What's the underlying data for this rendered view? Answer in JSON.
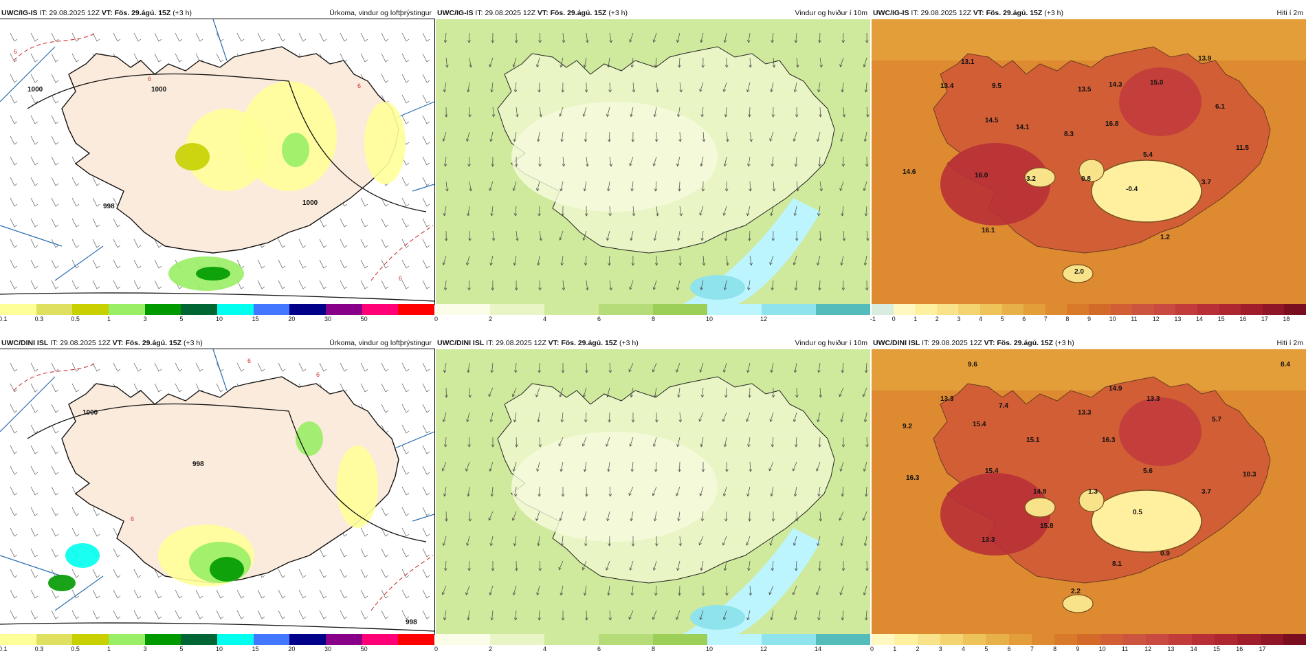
{
  "top_row": {
    "precip": {
      "model": "UWC/IG-IS",
      "it_label": "IT:",
      "it_value": "29.08.2025 12Z",
      "vt_label": "VT:",
      "vt_value": "Fös. 29.ágú. 15Z",
      "offset": "(+3 h)",
      "title": "Úrkoma, vindur og loftþrýstingur",
      "ticks": [
        "0.1",
        "0.3",
        "0.5",
        "1",
        "3",
        "5",
        "10",
        "15",
        "20",
        "30",
        "50"
      ],
      "colors": [
        "#ffff99",
        "#e0e060",
        "#c8d000",
        "#99ee66",
        "#009900",
        "#006633",
        "#00ffee",
        "#4477ff",
        "#000088",
        "#880088",
        "#ff0077",
        "#ff0000"
      ],
      "isobar_labels": [
        "1000",
        "1000",
        "1000",
        "998"
      ],
      "dashed_labels": [
        "6",
        "6",
        "6",
        "6"
      ]
    },
    "wind": {
      "model": "UWC/IG-IS",
      "it_label": "IT:",
      "it_value": "29.08.2025 12Z",
      "vt_label": "VT:",
      "vt_value": "Fös. 29.ágú. 15Z",
      "offset": "(+3 h)",
      "title": "Vindur og hviður í 10m",
      "ticks": [
        "0",
        "2",
        "4",
        "6",
        "8",
        "10",
        "12"
      ],
      "colors": [
        "#fbfde8",
        "#e9f5c5",
        "#cfe99d",
        "#b6dc7a",
        "#9bcf57",
        "#bdf5ff",
        "#8fe3ec",
        "#55bcbc"
      ]
    },
    "temp": {
      "model": "UWC/IG-IS",
      "it_label": "IT:",
      "it_value": "29.08.2025 12Z",
      "vt_label": "VT:",
      "vt_value": "Fös. 29.ágú. 15Z",
      "offset": "(+3 h)",
      "title": "Hiti í 2m",
      "ticks": [
        "-1",
        "0",
        "1",
        "2",
        "3",
        "4",
        "5",
        "6",
        "7",
        "8",
        "9",
        "10",
        "11",
        "12",
        "13",
        "14",
        "15",
        "16",
        "17",
        "18"
      ],
      "colors": [
        "#d8ecdf",
        "#fff8c0",
        "#fff0a0",
        "#f9e38a",
        "#f4d470",
        "#eec35a",
        "#e8b048",
        "#e39e3a",
        "#dd8a30",
        "#d87a2a",
        "#d46a2a",
        "#d25e36",
        "#cc5540",
        "#c84a40",
        "#c23c3c",
        "#b83036",
        "#ae2630",
        "#a01e2c",
        "#8e1626",
        "#7a0e20"
      ],
      "values": [
        "13.1",
        "13.4",
        "9.5",
        "14.5",
        "14.1",
        "8.3",
        "13.5",
        "14.3",
        "16.8",
        "15.0",
        "13.9",
        "6.1",
        "5.4",
        "11.5",
        "14.6",
        "16.0",
        "3.2",
        "0.8",
        "-0.4",
        "3.7",
        "16.1",
        "1.2",
        "2.0"
      ]
    }
  },
  "bottom_row": {
    "precip": {
      "model": "UWC/DINI ISL",
      "it_label": "IT:",
      "it_value": "29.08.2025 12Z",
      "vt_label": "VT:",
      "vt_value": "Fös. 29.ágú. 15Z",
      "offset": "(+3 h)",
      "title": "Úrkoma, vindur og loftþrýstingur",
      "ticks": [
        "0.1",
        "0.3",
        "0.5",
        "1",
        "3",
        "5",
        "10",
        "15",
        "20",
        "30",
        "50"
      ],
      "colors": [
        "#ffff99",
        "#e0e060",
        "#c8d000",
        "#99ee66",
        "#009900",
        "#006633",
        "#00ffee",
        "#4477ff",
        "#000088",
        "#880088",
        "#ff0077",
        "#ff0000"
      ],
      "isobar_labels": [
        "1000",
        "998",
        "998"
      ],
      "dashed_labels": [
        "6",
        "6",
        "6"
      ]
    },
    "wind": {
      "model": "UWC/DINI ISL",
      "it_label": "IT:",
      "it_value": "29.08.2025 12Z",
      "vt_label": "VT:",
      "vt_value": "Fös. 29.ágú. 15Z",
      "offset": "(+3 h)",
      "title": "Vindur og hviður í 10m",
      "ticks": [
        "0",
        "2",
        "4",
        "6",
        "8",
        "10",
        "12",
        "14"
      ],
      "colors": [
        "#fbfde8",
        "#e9f5c5",
        "#cfe99d",
        "#b6dc7a",
        "#9bcf57",
        "#bdf5ff",
        "#8fe3ec",
        "#55bcbc"
      ]
    },
    "temp": {
      "model": "UWC/DINI ISL",
      "it_label": "IT:",
      "it_value": "29.08.2025 12Z",
      "vt_label": "VT:",
      "vt_value": "Fös. 29.ágú. 15Z",
      "offset": "(+3 h)",
      "title": "Hiti í 2m",
      "ticks": [
        "0",
        "1",
        "2",
        "3",
        "4",
        "5",
        "6",
        "7",
        "8",
        "9",
        "10",
        "11",
        "12",
        "13",
        "14",
        "15",
        "16",
        "17"
      ],
      "colors": [
        "#fff8c0",
        "#fff0a0",
        "#f9e38a",
        "#f4d470",
        "#eec35a",
        "#e8b048",
        "#e39e3a",
        "#dd8a30",
        "#d87a2a",
        "#d46a2a",
        "#d25e36",
        "#cc5540",
        "#c84a40",
        "#c23c3c",
        "#b83036",
        "#ae2630",
        "#a01e2c",
        "#8e1626",
        "#7a0e20"
      ],
      "values": [
        "9.6",
        "13.3",
        "7.4",
        "9.2",
        "15.4",
        "14.9",
        "13.3",
        "13.3",
        "15.1",
        "16.3",
        "5.7",
        "16.3",
        "15.4",
        "5.6",
        "10.3",
        "14.8",
        "1.3",
        "0.5",
        "3.7",
        "15.8",
        "13.3",
        "8.1",
        "0.9",
        "2.2",
        "8.4"
      ]
    }
  }
}
